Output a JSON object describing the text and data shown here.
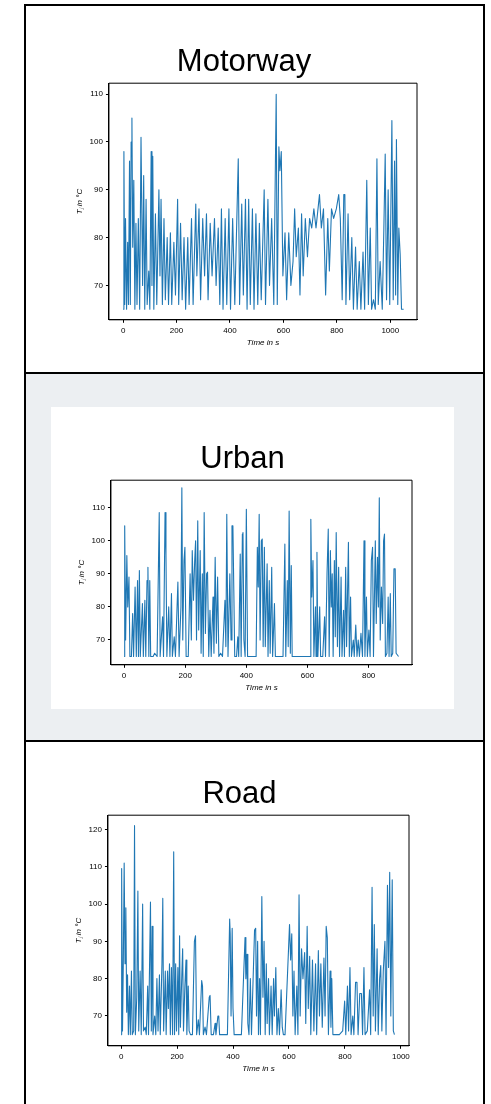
{
  "chart_data": [
    {
      "type": "line",
      "title": "Motorway",
      "xlabel": "Time in s",
      "ylabel": "Tⱼ in °C",
      "xlim": [
        -53,
        1100
      ],
      "ylim": [
        62.8,
        112.3
      ],
      "xticks": [
        0,
        200,
        400,
        600,
        800,
        1000
      ],
      "yticks": [
        70,
        80,
        90,
        100,
        110
      ],
      "x": [
        0,
        3,
        6,
        9,
        13,
        17,
        20,
        24,
        27,
        30,
        33,
        36,
        40,
        44,
        48,
        52,
        57,
        62,
        67,
        70,
        73,
        77,
        81,
        86,
        90,
        96,
        100,
        105,
        108,
        111,
        115,
        121,
        126,
        134,
        138,
        142,
        147,
        153,
        158,
        165,
        170,
        177,
        182,
        190,
        196,
        204,
        208,
        215,
        221,
        228,
        234,
        242,
        247,
        256,
        262,
        272,
        276,
        284,
        290,
        298,
        305,
        312,
        318,
        326,
        333,
        342,
        348,
        356,
        362,
        368,
        374,
        382,
        388,
        396,
        402,
        410,
        418,
        431,
        436,
        444,
        450,
        458,
        464,
        470,
        476,
        484,
        490,
        497,
        504,
        510,
        517,
        528,
        533,
        542,
        548,
        556,
        564,
        573,
        577,
        583,
        587,
        592,
        598,
        606,
        612,
        620,
        628,
        636,
        642,
        648,
        656,
        662,
        668,
        674,
        682,
        690,
        698,
        706,
        714,
        722,
        735,
        742,
        750,
        758,
        766,
        772,
        780,
        788,
        798,
        807,
        813,
        820,
        826,
        830,
        834,
        842,
        848,
        856,
        862,
        870,
        876,
        884,
        890,
        898,
        904,
        912,
        918,
        925,
        930,
        937,
        944,
        950,
        955,
        962,
        970,
        976,
        981,
        986,
        992,
        998,
        1006,
        1011,
        1016,
        1020,
        1023,
        1028,
        1032,
        1037,
        1042,
        1050
      ],
      "series": [
        {
          "color": "#1f77b4",
          "values": [
            65,
            98,
            66,
            84,
            65,
            79,
            66,
            96,
            66,
            100,
            105,
            78,
            92,
            65,
            83,
            66,
            84,
            65,
            101,
            101,
            70,
            93,
            65,
            88,
            66,
            73,
            65,
            98,
            70,
            97,
            65,
            85,
            66,
            90,
            72,
            88,
            66,
            84,
            67,
            80,
            66,
            81,
            66,
            79,
            68,
            88,
            66,
            83,
            67,
            80,
            65,
            80,
            66,
            84,
            66,
            87,
            72,
            86,
            67,
            84,
            72,
            85,
            67,
            83,
            72,
            84,
            70,
            82,
            66,
            86,
            65,
            84,
            66,
            86,
            65,
            84,
            66,
            96.5,
            66,
            87,
            68,
            88,
            65,
            88,
            66,
            86,
            65,
            85,
            66,
            83,
            67,
            90,
            66,
            88,
            70,
            84,
            66,
            110,
            66,
            99,
            94,
            98,
            72,
            81,
            67,
            81,
            70,
            75,
            86,
            76,
            82,
            68,
            85,
            72,
            84,
            76,
            84,
            82,
            86,
            82,
            89,
            82,
            86,
            68,
            84,
            73,
            86,
            84,
            86,
            89,
            84,
            67,
            89,
            89,
            66,
            85,
            67,
            80,
            65,
            78,
            65,
            75,
            65,
            77,
            65,
            92,
            66,
            82,
            65,
            67,
            65,
            96.5,
            66,
            75,
            65,
            82,
            97.5,
            67,
            90,
            66,
            104.5,
            67,
            96,
            68,
            100.5,
            66,
            82,
            76.5,
            65,
            65
          ]
        }
      ]
    },
    {
      "type": "line",
      "title": "Urban",
      "xlabel": "Time in s",
      "ylabel": "Tⱼ in °C",
      "xlim": [
        -43,
        942
      ],
      "ylim": [
        62.5,
        118.3
      ],
      "xticks": [
        0,
        200,
        400,
        600,
        800
      ],
      "yticks": [
        70,
        80,
        90,
        100,
        110
      ],
      "x": [
        0,
        2,
        5,
        9,
        12,
        16,
        19,
        24,
        28,
        31,
        36,
        40,
        44,
        47,
        50,
        53,
        60,
        63,
        68,
        71,
        75,
        78,
        81,
        84,
        87,
        95,
        100,
        108,
        115,
        118,
        126,
        129,
        134,
        137,
        140,
        146,
        150,
        155,
        158,
        164,
        168,
        176,
        180,
        186,
        189,
        192,
        196,
        199,
        203,
        210,
        216,
        220,
        223,
        227,
        231,
        234,
        237,
        241,
        244,
        249,
        252,
        256,
        259,
        262,
        266,
        270,
        273,
        277,
        281,
        285,
        291,
        294,
        298,
        302,
        306,
        310,
        316,
        322,
        330,
        333,
        336,
        340,
        346,
        350,
        353,
        356,
        359,
        362,
        368,
        372,
        375,
        380,
        383,
        387,
        389,
        392,
        396,
        400,
        404,
        410,
        420,
        432,
        436,
        439,
        442,
        445,
        449,
        452,
        455,
        459,
        462,
        468,
        471,
        475,
        478,
        483,
        486,
        492,
        495,
        505,
        520,
        526,
        529,
        534,
        537,
        540,
        544,
        547,
        550,
        560,
        580,
        600,
        610,
        611,
        614,
        618,
        621,
        626,
        628,
        631,
        634,
        640,
        643,
        650,
        656,
        659,
        664,
        668,
        671,
        675,
        678,
        681,
        684,
        688,
        691,
        694,
        698,
        702,
        705,
        710,
        713,
        718,
        721,
        725,
        728,
        734,
        737,
        741,
        744,
        750,
        753,
        758,
        762,
        766,
        770,
        775,
        780,
        785,
        788,
        793,
        796,
        801,
        805,
        809,
        813,
        816,
        822,
        825,
        829,
        832,
        835,
        838,
        842,
        846,
        849,
        852,
        855,
        860,
        864,
        867,
        871,
        874,
        879,
        883,
        887,
        890,
        898
      ],
      "series": [
        {
          "color": "#1f77b4",
          "values": [
            65,
            104.5,
            70,
            95.5,
            80,
            89,
            65,
            65,
            78,
            65,
            86,
            65,
            88,
            65,
            91,
            65,
            81,
            65,
            82,
            65,
            88,
            92,
            65,
            88,
            65,
            65,
            66,
            65,
            108.5,
            65,
            77,
            65,
            108.5,
            96,
            65,
            80,
            65,
            84,
            65,
            71,
            65,
            87.5,
            65,
            80,
            116,
            70,
            94,
            98,
            65,
            65,
            90,
            70,
            97,
            82,
            94,
            100,
            70,
            106,
            73,
            97,
            66,
            90,
            65,
            108.5,
            72,
            90,
            90.5,
            65,
            79,
            65,
            83,
            66,
            95,
            69,
            89,
            65,
            66,
            65,
            82,
            68,
            108,
            65,
            90,
            70,
            104.5,
            104.5,
            85,
            65,
            65,
            71,
            65,
            96,
            65,
            102,
            102.5,
            70,
            65,
            109.5,
            65,
            65,
            65,
            65,
            98,
            86,
            108,
            70,
            100,
            100.5,
            68,
            98,
            68,
            93,
            65,
            88,
            66,
            92,
            65,
            81,
            65,
            65,
            65,
            99,
            65,
            88,
            68,
            109,
            66,
            92.5,
            65,
            65,
            65,
            65,
            65,
            106.5,
            83,
            94,
            65,
            80,
            65,
            96.5,
            65,
            80,
            65,
            65,
            77,
            65,
            90,
            103.5,
            65,
            97,
            80,
            90,
            65,
            94,
            71,
            102.5,
            68,
            92,
            65,
            89,
            65,
            79,
            65,
            92,
            68,
            99.5,
            65,
            83,
            65,
            70,
            65,
            74.5,
            65,
            70,
            65,
            72,
            65,
            100,
            65,
            83,
            65,
            73,
            65,
            94,
            98,
            65,
            100,
            75,
            95,
            80,
            113,
            70,
            86,
            75,
            100,
            102,
            65,
            66,
            83,
            65,
            84,
            65,
            66,
            91.5,
            91.5,
            66,
            65
          ]
        }
      ]
    },
    {
      "type": "line",
      "title": "Road",
      "xlabel": "Time in s",
      "ylabel": "Tⱼ in °C",
      "xlim": [
        -47,
        1029
      ],
      "ylim": [
        62,
        123.8
      ],
      "xticks": [
        0,
        200,
        400,
        600,
        800,
        1000
      ],
      "yticks": [
        70,
        80,
        90,
        100,
        110,
        120
      ],
      "x": [
        0,
        2,
        5,
        8,
        11,
        14,
        17,
        20,
        23,
        26,
        30,
        33,
        37,
        40,
        45,
        48,
        51,
        56,
        60,
        63,
        68,
        72,
        77,
        80,
        86,
        90,
        95,
        98,
        102,
        105,
        108,
        111,
        114,
        120,
        124,
        128,
        132,
        137,
        140,
        146,
        149,
        152,
        158,
        161,
        166,
        169,
        173,
        176,
        180,
        184,
        188,
        191,
        195,
        198,
        203,
        206,
        209,
        212,
        217,
        220,
        223,
        228,
        232,
        235,
        240,
        243,
        248,
        255,
        262,
        266,
        270,
        276,
        280,
        288,
        291,
        294,
        300,
        305,
        315,
        318,
        322,
        330,
        336,
        339,
        346,
        349,
        352,
        365,
        380,
        388,
        390,
        393,
        397,
        400,
        404,
        415,
        430,
        443,
        446,
        450,
        453,
        457,
        462,
        466,
        477,
        481,
        484,
        488,
        491,
        495,
        498,
        503,
        507,
        511,
        515,
        519,
        522,
        527,
        530,
        536,
        540,
        545,
        548,
        553,
        557,
        562,
        566,
        572,
        576,
        580,
        586,
        602,
        606,
        610,
        614,
        618,
        622,
        628,
        632,
        636,
        640,
        645,
        650,
        656,
        660,
        665,
        669,
        674,
        678,
        684,
        689,
        695,
        699,
        705,
        709,
        714,
        719,
        725,
        729,
        733,
        737,
        741,
        747,
        750,
        753,
        757,
        765,
        780,
        792,
        799,
        803,
        809,
        813,
        818,
        822,
        828,
        832,
        838,
        843,
        847,
        853,
        859,
        863,
        868,
        872,
        880,
        888,
        892,
        897,
        901,
        905,
        909,
        915,
        919,
        924,
        928,
        932,
        937,
        943,
        947,
        952,
        956,
        960,
        964,
        969,
        973,
        977
      ],
      "series": [
        {
          "color": "#1f77b4",
          "values": [
            65,
            109.5,
            66,
            85,
            111,
            84,
            99,
            71,
            81,
            65,
            78,
            65,
            82,
            65,
            66,
            121,
            65,
            75,
            103.5,
            66,
            82,
            65,
            100,
            66,
            67,
            65,
            78,
            65,
            85,
            100.5,
            66,
            94,
            65,
            70,
            65,
            80,
            66,
            81,
            65,
            84,
            101.5,
            66,
            82,
            65,
            82,
            72,
            84,
            65,
            83,
            65,
            114,
            65,
            84,
            66,
            83,
            65,
            91.5,
            67,
            81,
            88,
            66,
            78,
            85,
            65,
            78,
            66,
            65,
            65,
            90,
            91.5,
            65,
            69,
            65,
            79.5,
            78,
            65,
            67,
            65,
            75,
            75.5,
            65,
            65,
            68,
            65,
            70,
            70,
            65,
            65,
            65,
            96,
            92,
            70,
            93.5,
            72,
            65,
            65,
            65,
            91,
            80,
            86.5,
            68,
            65,
            80,
            65,
            93,
            93.5,
            70,
            90,
            65,
            80,
            65,
            102,
            75,
            90,
            65,
            84,
            68,
            80,
            65,
            78,
            65,
            80,
            70,
            83,
            65,
            72,
            65,
            77,
            67,
            65,
            65,
            94.5,
            85,
            92,
            70,
            82,
            65,
            78,
            65,
            102.5,
            70,
            88,
            80,
            87,
            68,
            94,
            72,
            86,
            65,
            85,
            66,
            84,
            65,
            87.5,
            70,
            84,
            67,
            85.5,
            70,
            94,
            91,
            65,
            82,
            67,
            80,
            65,
            65,
            65,
            66,
            74,
            65,
            78,
            66,
            83,
            65,
            70,
            65,
            79,
            79,
            65,
            76,
            76,
            65,
            83,
            65,
            66,
            77,
            65,
            104.5,
            70,
            94.5,
            66,
            88,
            65,
            80,
            83.5,
            66,
            82,
            90,
            65,
            105,
            83,
            108.5,
            70,
            106.5,
            66,
            65
          ]
        }
      ]
    }
  ]
}
